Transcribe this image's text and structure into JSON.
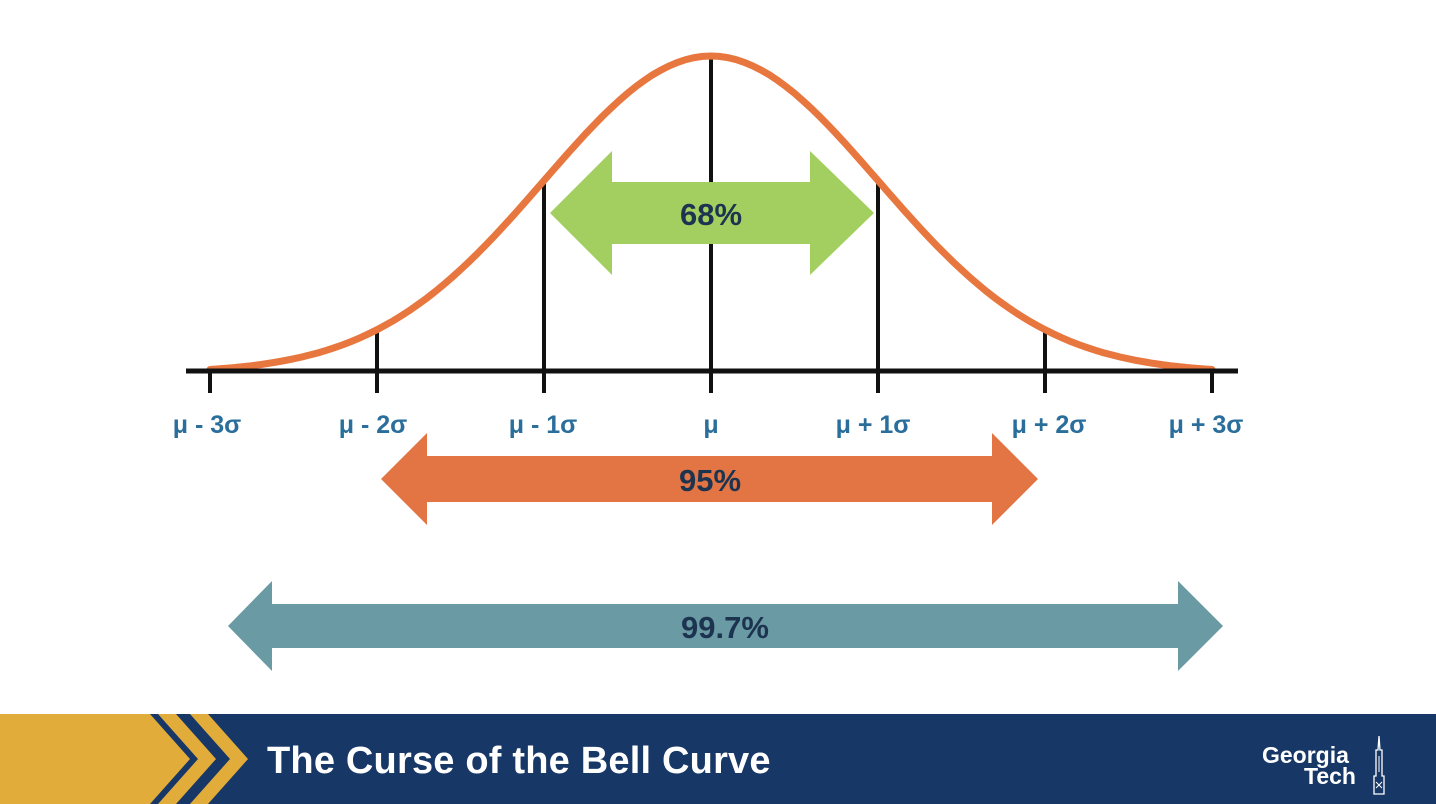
{
  "diagram": {
    "tick_labels": [
      "μ - 3σ",
      "μ - 2σ",
      "μ - 1σ",
      "μ",
      "μ + 1σ",
      "μ + 2σ",
      "μ + 3σ"
    ],
    "ranges": [
      {
        "label": "68%",
        "from_sigma": -1,
        "to_sigma": 1,
        "color": "#a3cf60"
      },
      {
        "label": "95%",
        "from_sigma": -2,
        "to_sigma": 2,
        "color": "#e37443"
      },
      {
        "label": "99.7%",
        "from_sigma": -3,
        "to_sigma": 3,
        "color": "#6a9aa3"
      }
    ],
    "curve_color": "#e8773f",
    "axis_color": "#111111",
    "label_color": "#2a6f9c"
  },
  "footer": {
    "title": "The Curse of the Bell Curve",
    "logo_line1": "Georgia",
    "logo_line2": "Tech",
    "background": "#173766",
    "chevron_color": "#e2ac3b"
  }
}
